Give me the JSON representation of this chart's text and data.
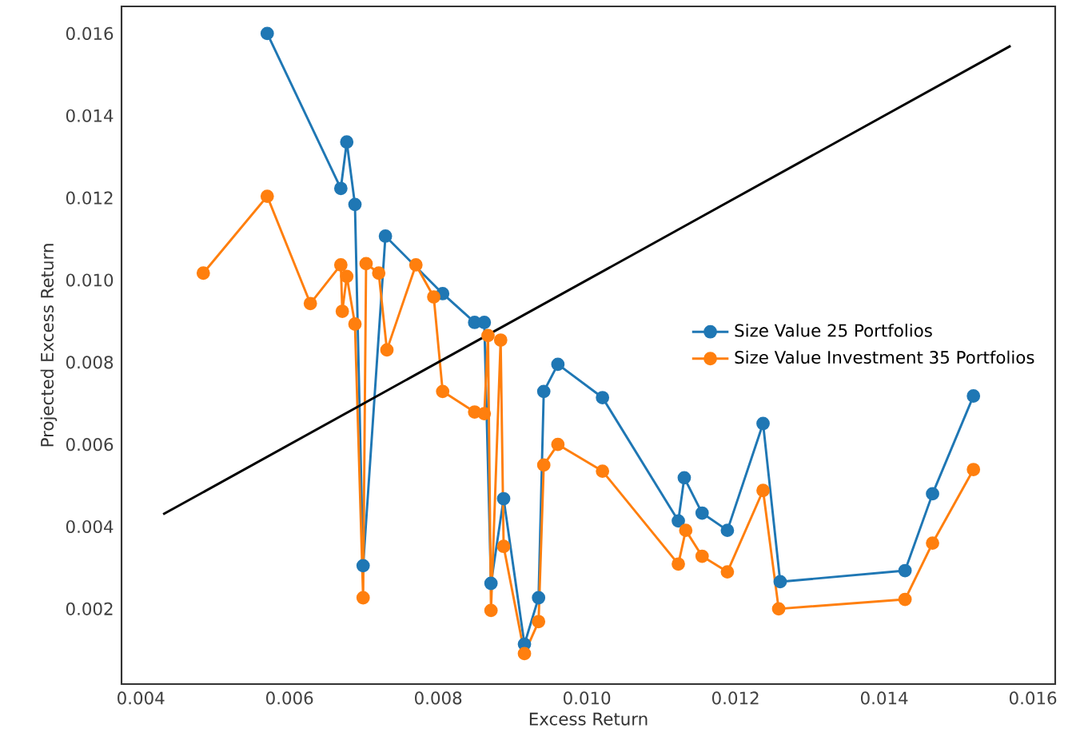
{
  "chart_data": {
    "type": "line",
    "xlabel": "Excess Return",
    "ylabel": "Projected Excess Return",
    "xlim": [
      0.00374,
      0.0163
    ],
    "ylim": [
      0.00017,
      0.01666
    ],
    "xticks": [
      0.004,
      0.006,
      0.008,
      {
        "value": 0.01,
        "label": "0.010"
      },
      0.012,
      0.014,
      0.016
    ],
    "yticks": [
      0.002,
      0.004,
      0.006,
      0.008,
      {
        "value": 0.01,
        "label": "0.010"
      },
      0.012,
      0.014,
      0.016
    ],
    "grid": false,
    "legend": "right",
    "marker": "circle",
    "series": [
      {
        "name": "Size Value 25 Portfolios",
        "color": "#1f77b4",
        "x": [
          0.0057,
          0.00669,
          0.00677,
          0.00688,
          0.00699,
          0.00729,
          0.00806,
          0.00849,
          0.00862,
          0.00871,
          0.00888,
          0.00916,
          0.00935,
          0.00942,
          0.00961,
          0.01021,
          0.01123,
          0.01131,
          0.01155,
          0.01189,
          0.01237,
          0.0126,
          0.01428,
          0.01465,
          0.0152
        ],
        "values": [
          0.016,
          0.01223,
          0.01336,
          0.01184,
          0.00305,
          0.01107,
          0.00967,
          0.00897,
          0.00897,
          0.00262,
          0.00468,
          0.00114,
          0.00227,
          0.00729,
          0.00795,
          0.00714,
          0.00414,
          0.00519,
          0.00433,
          0.00391,
          0.00651,
          0.00266,
          0.00293,
          0.0048,
          0.00718
        ]
      },
      {
        "name": "Size Value Investment 35 Portfolios",
        "color": "#ff7f0e",
        "x": [
          0.00484,
          0.0057,
          0.00628,
          0.00669,
          0.00671,
          0.00677,
          0.00688,
          0.00699,
          0.00703,
          0.0072,
          0.00731,
          0.0077,
          0.00794,
          0.00806,
          0.00849,
          0.00862,
          0.00867,
          0.00871,
          0.00884,
          0.00888,
          0.00916,
          0.00935,
          0.00942,
          0.00961,
          0.01021,
          0.01123,
          0.01133,
          0.01155,
          0.01189,
          0.01237,
          0.01258,
          0.01428,
          0.01465,
          0.0152
        ],
        "values": [
          0.01017,
          0.01204,
          0.00943,
          0.01037,
          0.00924,
          0.01009,
          0.00893,
          0.00227,
          0.0104,
          0.01017,
          0.0083,
          0.01037,
          0.00959,
          0.00729,
          0.00679,
          0.00675,
          0.00865,
          0.00196,
          0.00854,
          0.00352,
          0.00091,
          0.00169,
          0.0055,
          0.006,
          0.00535,
          0.00309,
          0.00391,
          0.00328,
          0.0029,
          0.00488,
          0.002,
          0.00223,
          0.0036,
          0.00539
        ]
      },
      {
        "type": "line",
        "color": "#000000",
        "marker": "none",
        "x": [
          0.0043,
          0.0157
        ],
        "values": [
          0.0043,
          0.0157
        ]
      }
    ]
  }
}
